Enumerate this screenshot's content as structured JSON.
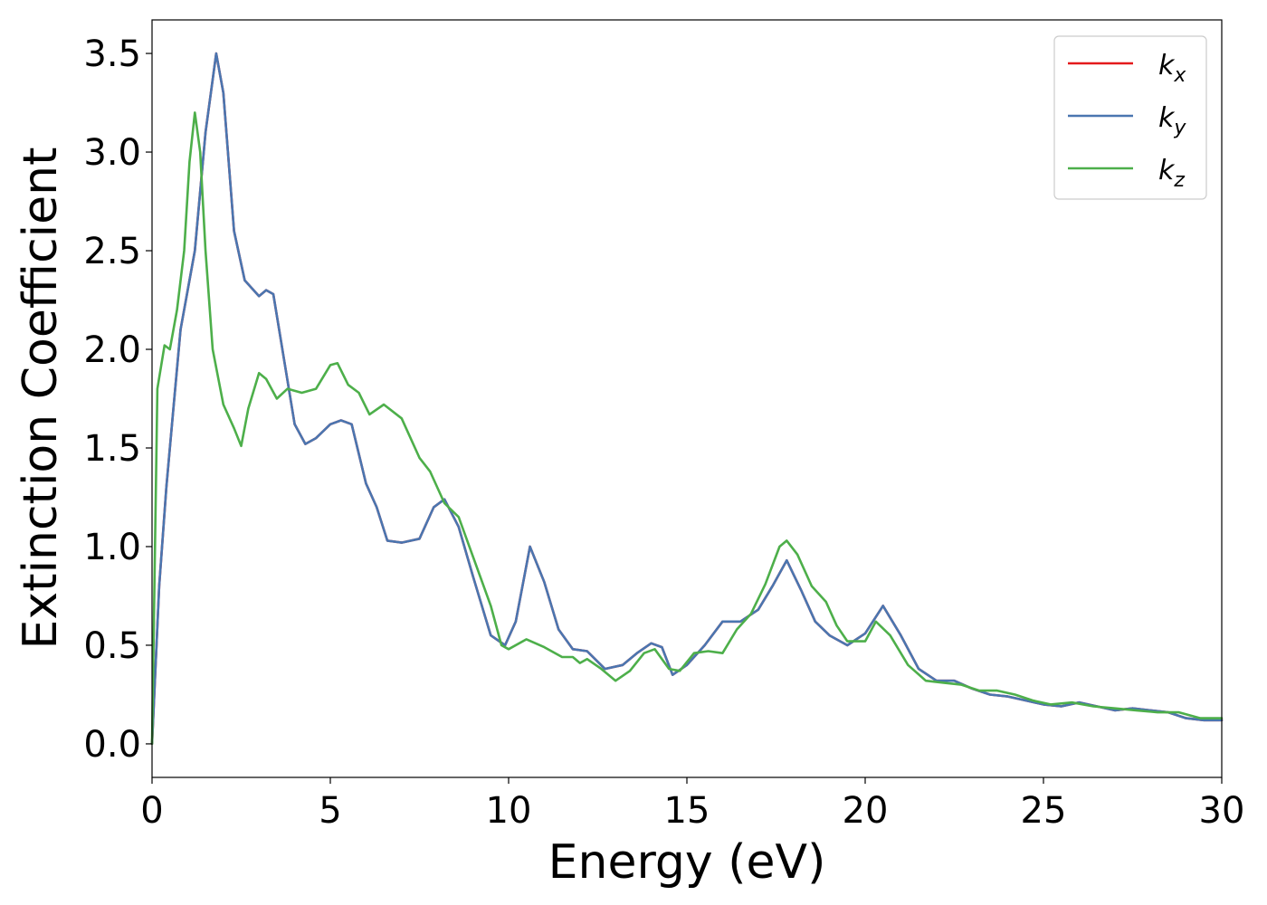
{
  "chart_data": {
    "type": "line",
    "title": "",
    "xlabel": "Energy (eV)",
    "ylabel": "Extinction Coefficient",
    "xlim": [
      0,
      30
    ],
    "ylim": [
      -0.17,
      3.67
    ],
    "xticks": [
      0,
      5,
      10,
      15,
      20,
      25,
      30
    ],
    "xtick_labels": [
      "0",
      "5",
      "10",
      "15",
      "20",
      "25",
      "30"
    ],
    "yticks": [
      0.0,
      0.5,
      1.0,
      1.5,
      2.0,
      2.5,
      3.0,
      3.5
    ],
    "ytick_labels": [
      "0.0",
      "0.5",
      "1.0",
      "1.5",
      "2.0",
      "2.5",
      "3.0",
      "3.5"
    ],
    "grid": false,
    "legend_position": "top-right",
    "series": [
      {
        "name": "k",
        "sub": "x",
        "color": "#e41a1c",
        "x": [
          0,
          0.2,
          0.4,
          0.6,
          0.8,
          1.0,
          1.2,
          1.5,
          1.8,
          2.0,
          2.3,
          2.6,
          3.0,
          3.2,
          3.4,
          3.7,
          4.0,
          4.3,
          4.6,
          5.0,
          5.3,
          5.6,
          6.0,
          6.3,
          6.6,
          7.0,
          7.5,
          7.9,
          8.2,
          8.6,
          9.0,
          9.5,
          9.9,
          10.2,
          10.6,
          11.0,
          11.4,
          11.8,
          12.2,
          12.7,
          13.2,
          13.6,
          14.0,
          14.3,
          14.6,
          15.0,
          15.5,
          16.0,
          16.5,
          17.0,
          17.4,
          17.8,
          18.2,
          18.6,
          19.0,
          19.5,
          20.0,
          20.5,
          21.0,
          21.5,
          22.0,
          22.5,
          23.0,
          23.5,
          24.0,
          24.5,
          25.0,
          25.5,
          26.0,
          26.5,
          27.0,
          27.5,
          28.0,
          28.5,
          29.0,
          29.5,
          30.0
        ],
        "y": [
          0.0,
          0.8,
          1.3,
          1.7,
          2.1,
          2.3,
          2.5,
          3.1,
          3.5,
          3.3,
          2.6,
          2.35,
          2.27,
          2.3,
          2.28,
          1.95,
          1.62,
          1.52,
          1.55,
          1.62,
          1.64,
          1.62,
          1.32,
          1.2,
          1.03,
          1.02,
          1.04,
          1.2,
          1.24,
          1.1,
          0.85,
          0.55,
          0.5,
          0.62,
          1.0,
          0.82,
          0.58,
          0.48,
          0.47,
          0.38,
          0.4,
          0.46,
          0.51,
          0.49,
          0.35,
          0.4,
          0.5,
          0.62,
          0.62,
          0.68,
          0.8,
          0.93,
          0.78,
          0.62,
          0.55,
          0.5,
          0.56,
          0.7,
          0.55,
          0.38,
          0.32,
          0.32,
          0.28,
          0.25,
          0.24,
          0.22,
          0.2,
          0.19,
          0.21,
          0.19,
          0.17,
          0.18,
          0.17,
          0.16,
          0.13,
          0.12,
          0.12
        ]
      },
      {
        "name": "k",
        "sub": "y",
        "color": "#4a76b0",
        "x": [
          0,
          0.2,
          0.4,
          0.6,
          0.8,
          1.0,
          1.2,
          1.5,
          1.8,
          2.0,
          2.3,
          2.6,
          3.0,
          3.2,
          3.4,
          3.7,
          4.0,
          4.3,
          4.6,
          5.0,
          5.3,
          5.6,
          6.0,
          6.3,
          6.6,
          7.0,
          7.5,
          7.9,
          8.2,
          8.6,
          9.0,
          9.5,
          9.9,
          10.2,
          10.6,
          11.0,
          11.4,
          11.8,
          12.2,
          12.7,
          13.2,
          13.6,
          14.0,
          14.3,
          14.6,
          15.0,
          15.5,
          16.0,
          16.5,
          17.0,
          17.4,
          17.8,
          18.2,
          18.6,
          19.0,
          19.5,
          20.0,
          20.5,
          21.0,
          21.5,
          22.0,
          22.5,
          23.0,
          23.5,
          24.0,
          24.5,
          25.0,
          25.5,
          26.0,
          26.5,
          27.0,
          27.5,
          28.0,
          28.5,
          29.0,
          29.5,
          30.0
        ],
        "y": [
          0.0,
          0.8,
          1.3,
          1.7,
          2.1,
          2.3,
          2.5,
          3.1,
          3.5,
          3.3,
          2.6,
          2.35,
          2.27,
          2.3,
          2.28,
          1.95,
          1.62,
          1.52,
          1.55,
          1.62,
          1.64,
          1.62,
          1.32,
          1.2,
          1.03,
          1.02,
          1.04,
          1.2,
          1.24,
          1.1,
          0.85,
          0.55,
          0.5,
          0.62,
          1.0,
          0.82,
          0.58,
          0.48,
          0.47,
          0.38,
          0.4,
          0.46,
          0.51,
          0.49,
          0.35,
          0.4,
          0.5,
          0.62,
          0.62,
          0.68,
          0.8,
          0.93,
          0.78,
          0.62,
          0.55,
          0.5,
          0.56,
          0.7,
          0.55,
          0.38,
          0.32,
          0.32,
          0.28,
          0.25,
          0.24,
          0.22,
          0.2,
          0.19,
          0.21,
          0.19,
          0.17,
          0.18,
          0.17,
          0.16,
          0.13,
          0.12,
          0.12
        ]
      },
      {
        "name": "k",
        "sub": "z",
        "color": "#4daf4a",
        "x": [
          0,
          0.15,
          0.35,
          0.5,
          0.7,
          0.9,
          1.05,
          1.2,
          1.35,
          1.5,
          1.7,
          2.0,
          2.3,
          2.5,
          2.7,
          3.0,
          3.2,
          3.5,
          3.8,
          4.2,
          4.6,
          5.0,
          5.2,
          5.5,
          5.8,
          6.1,
          6.5,
          7.0,
          7.5,
          7.8,
          8.2,
          8.6,
          9.0,
          9.5,
          9.8,
          10.0,
          10.5,
          11.0,
          11.5,
          11.8,
          12.0,
          12.2,
          12.6,
          13.0,
          13.4,
          13.8,
          14.1,
          14.5,
          14.8,
          15.2,
          15.6,
          16.0,
          16.4,
          16.8,
          17.2,
          17.6,
          17.8,
          18.1,
          18.5,
          18.9,
          19.2,
          19.5,
          20.0,
          20.3,
          20.7,
          21.2,
          21.7,
          22.2,
          22.7,
          23.2,
          23.7,
          24.2,
          24.7,
          25.2,
          25.8,
          26.4,
          27.0,
          27.6,
          28.2,
          28.8,
          29.4,
          30.0
        ],
        "y": [
          0.0,
          1.8,
          2.02,
          2.0,
          2.2,
          2.5,
          2.95,
          3.2,
          3.0,
          2.5,
          2.0,
          1.72,
          1.6,
          1.51,
          1.7,
          1.88,
          1.85,
          1.75,
          1.8,
          1.78,
          1.8,
          1.92,
          1.93,
          1.82,
          1.78,
          1.67,
          1.72,
          1.65,
          1.45,
          1.38,
          1.22,
          1.15,
          0.95,
          0.7,
          0.5,
          0.48,
          0.53,
          0.49,
          0.44,
          0.44,
          0.41,
          0.43,
          0.38,
          0.32,
          0.37,
          0.46,
          0.48,
          0.38,
          0.37,
          0.46,
          0.47,
          0.46,
          0.58,
          0.66,
          0.81,
          1.0,
          1.03,
          0.96,
          0.8,
          0.72,
          0.6,
          0.52,
          0.52,
          0.62,
          0.55,
          0.4,
          0.32,
          0.31,
          0.3,
          0.27,
          0.27,
          0.25,
          0.22,
          0.2,
          0.21,
          0.19,
          0.18,
          0.17,
          0.16,
          0.16,
          0.13,
          0.13
        ]
      }
    ]
  }
}
